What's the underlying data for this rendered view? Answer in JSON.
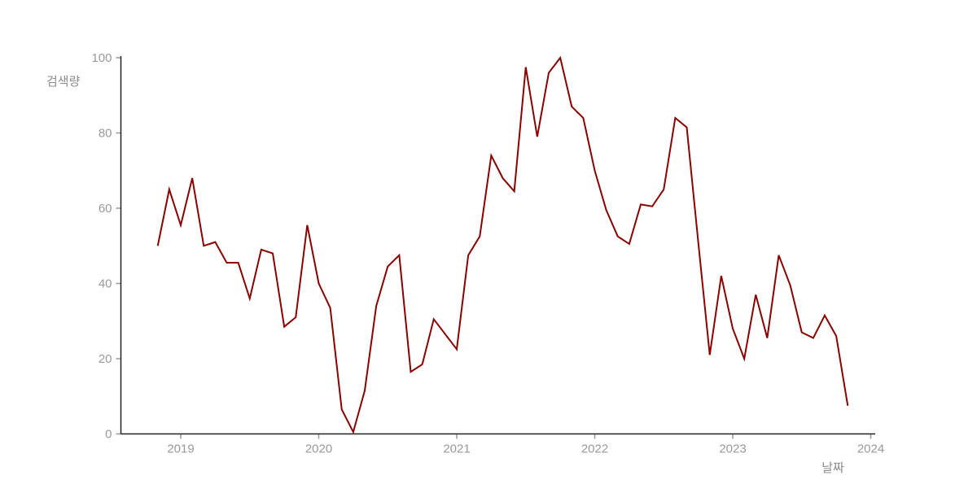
{
  "chart_data": {
    "type": "line",
    "title": "",
    "ylabel": "검색량",
    "xlabel": "날짜",
    "legend": null,
    "grid": false,
    "ylim": [
      0,
      100
    ],
    "y_ticks": [
      0,
      20,
      40,
      60,
      80,
      100
    ],
    "x_tick_labels": [
      "2019",
      "2020",
      "2021",
      "2022",
      "2023",
      "2024"
    ],
    "x_range": [
      "2018-11",
      "2023-11"
    ],
    "line_color": "#8b0000",
    "spine_color": "#222222",
    "tick_mark_color": "#999999",
    "tick_label_color": "#9a9a9a",
    "background_color": "#ffffff",
    "months": [
      "2018-11",
      "2018-12",
      "2019-01",
      "2019-02",
      "2019-03",
      "2019-04",
      "2019-05",
      "2019-06",
      "2019-07",
      "2019-08",
      "2019-09",
      "2019-10",
      "2019-11",
      "2019-12",
      "2020-01",
      "2020-02",
      "2020-03",
      "2020-04",
      "2020-05",
      "2020-06",
      "2020-07",
      "2020-08",
      "2020-09",
      "2020-10",
      "2020-11",
      "2020-12",
      "2021-01",
      "2021-02",
      "2021-03",
      "2021-04",
      "2021-05",
      "2021-06",
      "2021-07",
      "2021-08",
      "2021-09",
      "2021-10",
      "2021-11",
      "2021-12",
      "2022-01",
      "2022-02",
      "2022-03",
      "2022-04",
      "2022-05",
      "2022-06",
      "2022-07",
      "2022-08",
      "2022-09",
      "2022-10",
      "2022-11",
      "2022-12",
      "2023-01",
      "2023-02",
      "2023-03",
      "2023-04",
      "2023-05",
      "2023-06",
      "2023-07",
      "2023-08",
      "2023-09",
      "2023-10",
      "2023-11"
    ],
    "values": [
      50,
      65,
      55.5,
      68,
      50,
      51,
      45.5,
      45.5,
      36,
      49,
      48,
      28.5,
      31,
      55.5,
      40,
      33.5,
      6.5,
      0.5,
      11.5,
      34,
      44.5,
      47.5,
      16.5,
      18.5,
      30.5,
      26.5,
      22.5,
      47.5,
      52.5,
      74,
      68,
      64.5,
      97.5,
      79,
      96,
      100,
      87,
      84,
      70,
      59.5,
      52.5,
      50.5,
      61,
      60.5,
      65,
      84,
      81.5,
      51,
      21,
      42,
      28,
      20,
      37,
      25.5,
      47.5,
      39.5,
      27,
      25.5,
      31.5,
      26,
      7.5
    ]
  }
}
